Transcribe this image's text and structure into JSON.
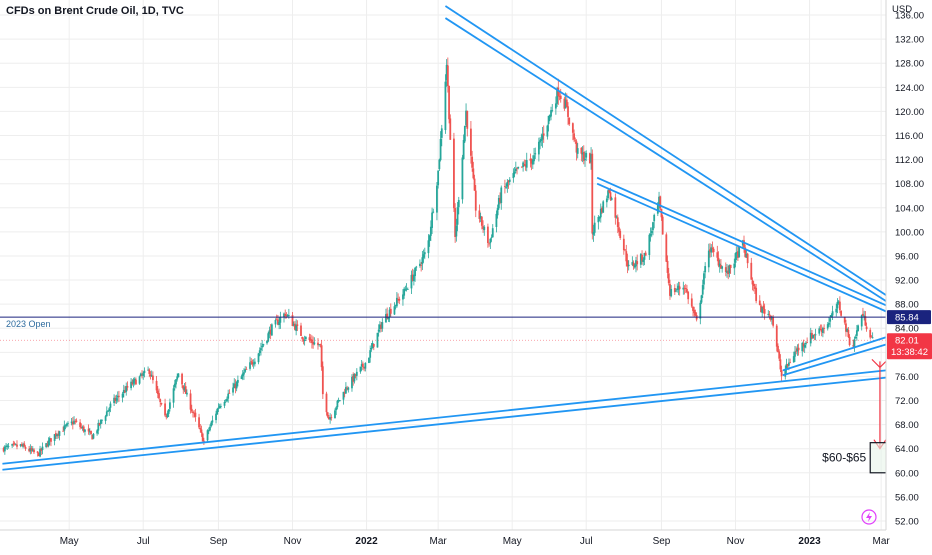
{
  "header": {
    "title": "CFDs on Brent Crude Oil, 1D, TVC"
  },
  "icons": {
    "alert": "lightning-icon"
  },
  "chart_data": {
    "type": "candlestick",
    "y_axis": {
      "currency": "USD",
      "ticks": [
        52,
        56,
        60,
        64,
        68,
        72,
        76,
        80,
        84,
        88,
        92,
        96,
        100,
        104,
        108,
        112,
        116,
        120,
        124,
        128,
        132,
        136
      ],
      "range": [
        50.5,
        138.5
      ],
      "position": "right"
    },
    "x_axis": {
      "ticks": [
        {
          "label": "May",
          "date": "2021-05-01"
        },
        {
          "label": "Jul",
          "date": "2021-07-01"
        },
        {
          "label": "Sep",
          "date": "2021-09-01"
        },
        {
          "label": "Nov",
          "date": "2021-11-01"
        },
        {
          "label": "2022",
          "date": "2022-01-01",
          "bold": true
        },
        {
          "label": "Mar",
          "date": "2022-03-01"
        },
        {
          "label": "May",
          "date": "2022-05-01"
        },
        {
          "label": "Jul",
          "date": "2022-07-01"
        },
        {
          "label": "Sep",
          "date": "2022-09-01"
        },
        {
          "label": "Nov",
          "date": "2022-11-01"
        },
        {
          "label": "2023",
          "date": "2023-01-01",
          "bold": true
        },
        {
          "label": "Mar",
          "date": "2023-03-01"
        }
      ],
      "range": [
        "2021-03-05",
        "2023-03-05"
      ]
    },
    "series_close": [
      [
        "2021-03-05",
        64.0
      ],
      [
        "2021-03-22",
        64.5
      ],
      [
        "2021-04-05",
        63.0
      ],
      [
        "2021-04-20",
        66.5
      ],
      [
        "2021-05-05",
        68.5
      ],
      [
        "2021-05-20",
        66.0
      ],
      [
        "2021-06-05",
        71.5
      ],
      [
        "2021-06-20",
        74.5
      ],
      [
        "2021-07-06",
        77.0
      ],
      [
        "2021-07-19",
        69.0
      ],
      [
        "2021-07-30",
        76.5
      ],
      [
        "2021-08-10",
        70.5
      ],
      [
        "2021-08-20",
        65.2
      ],
      [
        "2021-09-01",
        71.0
      ],
      [
        "2021-09-15",
        74.5
      ],
      [
        "2021-10-01",
        79.0
      ],
      [
        "2021-10-15",
        84.0
      ],
      [
        "2021-10-26",
        86.5
      ],
      [
        "2021-11-10",
        82.5
      ],
      [
        "2021-11-24",
        81.0
      ],
      [
        "2021-11-26",
        73.0
      ],
      [
        "2021-12-01",
        69.0
      ],
      [
        "2021-12-15",
        74.0
      ],
      [
        "2022-01-01",
        78.5
      ],
      [
        "2022-01-15",
        85.5
      ],
      [
        "2022-02-01",
        90.0
      ],
      [
        "2022-02-20",
        97.0
      ],
      [
        "2022-03-01",
        110.0
      ],
      [
        "2022-03-08",
        128.0
      ],
      [
        "2022-03-15",
        99.0
      ],
      [
        "2022-03-24",
        120.0
      ],
      [
        "2022-04-01",
        104.0
      ],
      [
        "2022-04-12",
        98.0
      ],
      [
        "2022-04-22",
        106.5
      ],
      [
        "2022-05-05",
        110.0
      ],
      [
        "2022-05-20",
        112.5
      ],
      [
        "2022-06-08",
        123.5
      ],
      [
        "2022-06-14",
        121.0
      ],
      [
        "2022-06-24",
        113.0
      ],
      [
        "2022-07-05",
        112.0
      ],
      [
        "2022-07-06",
        100.0
      ],
      [
        "2022-07-20",
        107.0
      ],
      [
        "2022-08-05",
        94.0
      ],
      [
        "2022-08-18",
        96.0
      ],
      [
        "2022-08-30",
        105.0
      ],
      [
        "2022-09-08",
        90.0
      ],
      [
        "2022-09-20",
        91.0
      ],
      [
        "2022-09-30",
        85.0
      ],
      [
        "2022-10-10",
        97.5
      ],
      [
        "2022-10-25",
        93.0
      ],
      [
        "2022-11-07",
        98.0
      ],
      [
        "2022-11-20",
        87.5
      ],
      [
        "2022-12-01",
        86.0
      ],
      [
        "2022-12-09",
        76.0
      ],
      [
        "2022-12-20",
        80.0
      ],
      [
        "2023-01-01",
        82.5
      ],
      [
        "2023-01-15",
        84.5
      ],
      [
        "2023-01-25",
        88.0
      ],
      [
        "2023-02-05",
        80.5
      ],
      [
        "2023-02-13",
        86.5
      ],
      [
        "2023-02-22",
        82.0
      ]
    ],
    "price_levels": [
      {
        "label": "85.84",
        "value": 85.84,
        "color": "#1a237e",
        "name": "2023 Open",
        "style": "solid"
      },
      {
        "label": "82.01",
        "value": 82.01,
        "color": "#f23645",
        "countdown": "13:38:42",
        "style": "dotted"
      }
    ],
    "trendlines": [
      {
        "from": [
          "2022-03-07",
          137.5
        ],
        "to": [
          "2023-03-05",
          89.5
        ],
        "role": "upper"
      },
      {
        "from": [
          "2022-03-07",
          135.5
        ],
        "to": [
          "2023-03-05",
          88.5
        ],
        "role": "upper"
      },
      {
        "from": [
          "2022-07-10",
          109.0
        ],
        "to": [
          "2023-03-05",
          87.8
        ],
        "role": "inner"
      },
      {
        "from": [
          "2022-07-10",
          108.0
        ],
        "to": [
          "2023-03-05",
          86.8
        ],
        "role": "inner"
      },
      {
        "from": [
          "2022-12-10",
          77.0
        ],
        "to": [
          "2023-03-05",
          82.5
        ],
        "role": "short-support"
      },
      {
        "from": [
          "2022-12-10",
          76.2
        ],
        "to": [
          "2023-03-05",
          81.3
        ],
        "role": "short-support"
      },
      {
        "from": [
          "2021-03-07",
          61.5
        ],
        "to": [
          "2023-03-05",
          77.0
        ],
        "role": "long-support"
      },
      {
        "from": [
          "2021-03-07",
          60.5
        ],
        "to": [
          "2023-03-05",
          75.8
        ],
        "role": "long-support"
      }
    ],
    "projection": {
      "from": [
        "2023-02-28",
        78.5
      ],
      "to": [
        "2023-02-28",
        64.0
      ],
      "color": "#f23645"
    },
    "target_box": {
      "label": "$60-$65",
      "low": 60.0,
      "high": 65.0,
      "date_from": "2023-02-20",
      "date_to": "2023-03-08"
    },
    "colors": {
      "up": "#26a69a",
      "down": "#ef5350",
      "trendline": "#2196f3",
      "grid": "#eeeeee",
      "axis_text": "#131722"
    }
  }
}
